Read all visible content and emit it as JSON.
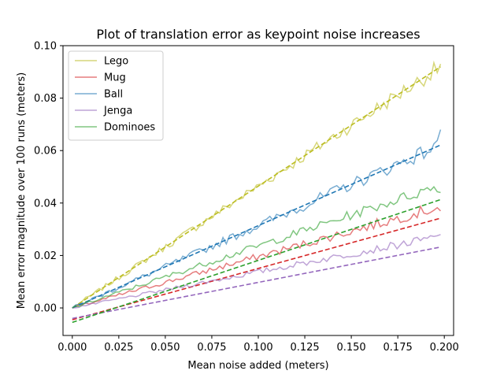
{
  "chart_data": {
    "type": "line",
    "title": "Plot of translation error as keypoint noise increases",
    "xlabel": "Mean noise added (meters)",
    "ylabel": "Mean error magnitude over 100 runs (meters)",
    "xlim": [
      -0.005,
      0.205
    ],
    "ylim": [
      -0.0105,
      0.1
    ],
    "xticks": [
      "0.000",
      "0.025",
      "0.050",
      "0.075",
      "0.100",
      "0.125",
      "0.150",
      "0.175",
      "0.200"
    ],
    "yticks": [
      "0.00",
      "0.02",
      "0.04",
      "0.06",
      "0.08",
      "0.10"
    ],
    "grid": false,
    "legend_position": "top-left",
    "series": [
      {
        "name": "Lego",
        "color": "#bcbd22",
        "x_range": [
          0,
          0.198
        ],
        "slope": 0.4645,
        "intercept": 0.0,
        "end_value": 0.093,
        "noise": 0.0022
      },
      {
        "name": "Mug",
        "color": "#d62728",
        "x_range": [
          0,
          0.198
        ],
        "slope": 0.1956,
        "intercept": -0.0045,
        "end_value": 0.037,
        "noise": 0.0015
      },
      {
        "name": "Ball",
        "color": "#1f77b4",
        "x_range": [
          0,
          0.198
        ],
        "slope": 0.3138,
        "intercept": 0.0,
        "end_value": 0.068,
        "noise": 0.002
      },
      {
        "name": "Jenga",
        "color": "#9467bd",
        "x_range": [
          0,
          0.198
        ],
        "slope": 0.1374,
        "intercept": -0.004,
        "end_value": 0.028,
        "noise": 0.0011
      },
      {
        "name": "Dominoes",
        "color": "#2ca02c",
        "x_range": [
          0,
          0.198
        ],
        "slope": 0.2364,
        "intercept": -0.0055,
        "end_value": 0.044,
        "noise": 0.0015
      }
    ]
  }
}
